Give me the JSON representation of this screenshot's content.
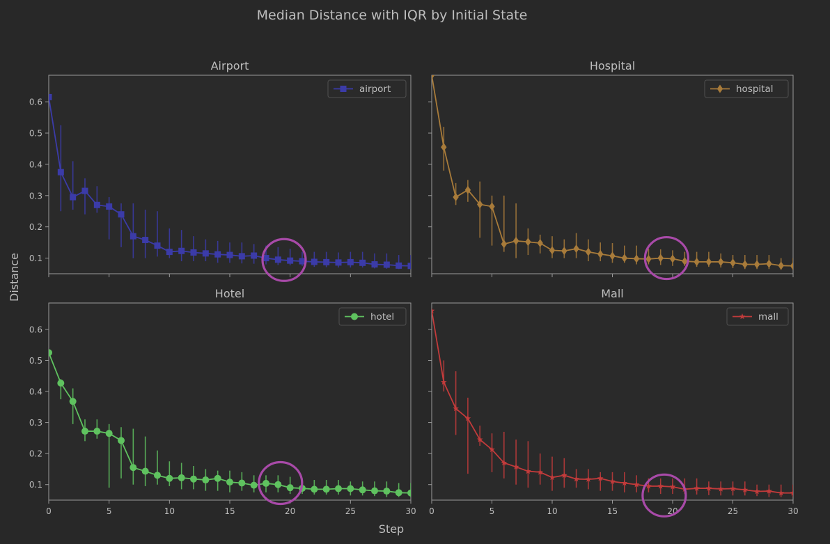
{
  "chart_data": {
    "type": "line",
    "title": "Median Distance with IQR by Initial State",
    "xlabel": "Step",
    "ylabel": "Distance",
    "xlim": [
      0,
      30
    ],
    "ylim": [
      0.05,
      0.685
    ],
    "xticks": [
      "0",
      "5",
      "10",
      "15",
      "20",
      "25",
      "30"
    ],
    "yticks": [
      "0.1",
      "0.2",
      "0.3",
      "0.4",
      "0.5",
      "0.6"
    ],
    "panels": [
      {
        "title": "Airport",
        "legend": "airport",
        "color": "#3b3ba8",
        "marker": "square",
        "highlight": {
          "x": 19.5,
          "y": 0.094
        },
        "x": [
          0,
          1,
          2,
          3,
          4,
          5,
          6,
          7,
          8,
          9,
          10,
          11,
          12,
          13,
          14,
          15,
          16,
          17,
          18,
          19,
          20,
          21,
          22,
          23,
          24,
          25,
          26,
          27,
          28,
          29,
          30
        ],
        "values": [
          0.615,
          0.375,
          0.295,
          0.315,
          0.27,
          0.265,
          0.24,
          0.17,
          0.158,
          0.14,
          0.12,
          0.123,
          0.118,
          0.115,
          0.112,
          0.11,
          0.106,
          0.108,
          0.1,
          0.095,
          0.092,
          0.09,
          0.088,
          0.087,
          0.086,
          0.087,
          0.085,
          0.08,
          0.079,
          0.076,
          0.075
        ],
        "q1": [
          0.61,
          0.25,
          0.255,
          0.24,
          0.245,
          0.16,
          0.135,
          0.1,
          0.1,
          0.105,
          0.1,
          0.09,
          0.09,
          0.09,
          0.085,
          0.085,
          0.083,
          0.082,
          0.08,
          0.078,
          0.077,
          0.075,
          0.072,
          0.071,
          0.07,
          0.07,
          0.07,
          0.067,
          0.066,
          0.065,
          0.065
        ],
        "q3": [
          0.62,
          0.525,
          0.41,
          0.355,
          0.33,
          0.295,
          0.275,
          0.275,
          0.255,
          0.25,
          0.195,
          0.19,
          0.17,
          0.16,
          0.155,
          0.15,
          0.15,
          0.145,
          0.14,
          0.135,
          0.13,
          0.12,
          0.12,
          0.12,
          0.118,
          0.12,
          0.12,
          0.115,
          0.115,
          0.11,
          0.11
        ]
      },
      {
        "title": "Hospital",
        "legend": "hospital",
        "color": "#a87b3a",
        "marker": "diamond",
        "highlight": {
          "x": 19.5,
          "y": 0.1
        },
        "x": [
          0,
          1,
          2,
          3,
          4,
          5,
          6,
          7,
          8,
          9,
          10,
          11,
          12,
          13,
          14,
          15,
          16,
          17,
          18,
          19,
          20,
          21,
          22,
          23,
          24,
          25,
          26,
          27,
          28,
          29,
          30
        ],
        "values": [
          0.685,
          0.455,
          0.295,
          0.318,
          0.272,
          0.265,
          0.145,
          0.155,
          0.152,
          0.148,
          0.125,
          0.123,
          0.13,
          0.12,
          0.113,
          0.107,
          0.1,
          0.098,
          0.097,
          0.1,
          0.098,
          0.09,
          0.088,
          0.088,
          0.088,
          0.085,
          0.08,
          0.08,
          0.082,
          0.076,
          0.075
        ],
        "q1": [
          0.68,
          0.38,
          0.27,
          0.28,
          0.165,
          0.14,
          0.12,
          0.1,
          0.11,
          0.115,
          0.1,
          0.1,
          0.1,
          0.09,
          0.09,
          0.085,
          0.085,
          0.08,
          0.08,
          0.078,
          0.075,
          0.075,
          0.072,
          0.072,
          0.07,
          0.068,
          0.065,
          0.065,
          0.065,
          0.063,
          0.062
        ],
        "q3": [
          0.69,
          0.52,
          0.34,
          0.35,
          0.345,
          0.3,
          0.3,
          0.275,
          0.195,
          0.175,
          0.17,
          0.16,
          0.18,
          0.16,
          0.15,
          0.148,
          0.14,
          0.14,
          0.13,
          0.128,
          0.125,
          0.12,
          0.12,
          0.12,
          0.115,
          0.11,
          0.11,
          0.11,
          0.11,
          0.1,
          0.1
        ]
      },
      {
        "title": "Hotel",
        "legend": "hotel",
        "color": "#5fc25f",
        "marker": "circle",
        "highlight": {
          "x": 19.2,
          "y": 0.105
        },
        "x": [
          0,
          1,
          2,
          3,
          4,
          5,
          6,
          7,
          8,
          9,
          10,
          11,
          12,
          13,
          14,
          15,
          16,
          17,
          18,
          19,
          20,
          21,
          22,
          23,
          24,
          25,
          26,
          27,
          28,
          29,
          30
        ],
        "values": [
          0.525,
          0.427,
          0.368,
          0.272,
          0.272,
          0.265,
          0.242,
          0.155,
          0.143,
          0.13,
          0.12,
          0.122,
          0.118,
          0.115,
          0.12,
          0.108,
          0.105,
          0.098,
          0.104,
          0.1,
          0.09,
          0.088,
          0.085,
          0.085,
          0.087,
          0.087,
          0.083,
          0.08,
          0.079,
          0.074,
          0.073
        ],
        "q1": [
          0.52,
          0.375,
          0.295,
          0.24,
          0.248,
          0.09,
          0.12,
          0.1,
          0.095,
          0.1,
          0.095,
          0.085,
          0.085,
          0.08,
          0.08,
          0.075,
          0.08,
          0.075,
          0.075,
          0.075,
          0.07,
          0.07,
          0.068,
          0.068,
          0.068,
          0.065,
          0.065,
          0.063,
          0.06,
          0.06,
          0.06
        ],
        "q3": [
          0.53,
          0.44,
          0.41,
          0.31,
          0.31,
          0.295,
          0.285,
          0.28,
          0.255,
          0.21,
          0.175,
          0.17,
          0.16,
          0.15,
          0.145,
          0.145,
          0.14,
          0.13,
          0.13,
          0.13,
          0.125,
          0.12,
          0.115,
          0.115,
          0.115,
          0.11,
          0.11,
          0.11,
          0.11,
          0.105,
          0.105
        ]
      },
      {
        "title": "Mall",
        "legend": "mall",
        "color": "#c23b3b",
        "marker": "star",
        "highlight": {
          "x": 19.3,
          "y": 0.065
        },
        "x": [
          0,
          1,
          2,
          3,
          4,
          5,
          6,
          7,
          8,
          9,
          10,
          11,
          12,
          13,
          14,
          15,
          16,
          17,
          18,
          19,
          20,
          21,
          22,
          23,
          24,
          25,
          26,
          27,
          28,
          29,
          30
        ],
        "values": [
          0.66,
          0.43,
          0.345,
          0.313,
          0.245,
          0.213,
          0.17,
          0.157,
          0.143,
          0.14,
          0.123,
          0.13,
          0.118,
          0.117,
          0.12,
          0.11,
          0.105,
          0.1,
          0.095,
          0.095,
          0.093,
          0.085,
          0.088,
          0.088,
          0.086,
          0.087,
          0.083,
          0.078,
          0.079,
          0.073,
          0.073
        ],
        "q1": [
          0.655,
          0.4,
          0.26,
          0.135,
          0.225,
          0.14,
          0.12,
          0.1,
          0.09,
          0.1,
          0.08,
          0.09,
          0.09,
          0.085,
          0.08,
          0.08,
          0.075,
          0.075,
          0.075,
          0.07,
          0.07,
          0.07,
          0.068,
          0.066,
          0.065,
          0.065,
          0.065,
          0.063,
          0.06,
          0.06,
          0.06
        ],
        "q3": [
          0.665,
          0.5,
          0.465,
          0.38,
          0.29,
          0.265,
          0.27,
          0.245,
          0.24,
          0.2,
          0.19,
          0.185,
          0.15,
          0.15,
          0.14,
          0.14,
          0.14,
          0.13,
          0.12,
          0.12,
          0.12,
          0.12,
          0.12,
          0.11,
          0.11,
          0.11,
          0.11,
          0.1,
          0.1,
          0.1,
          0.1
        ]
      }
    ]
  }
}
